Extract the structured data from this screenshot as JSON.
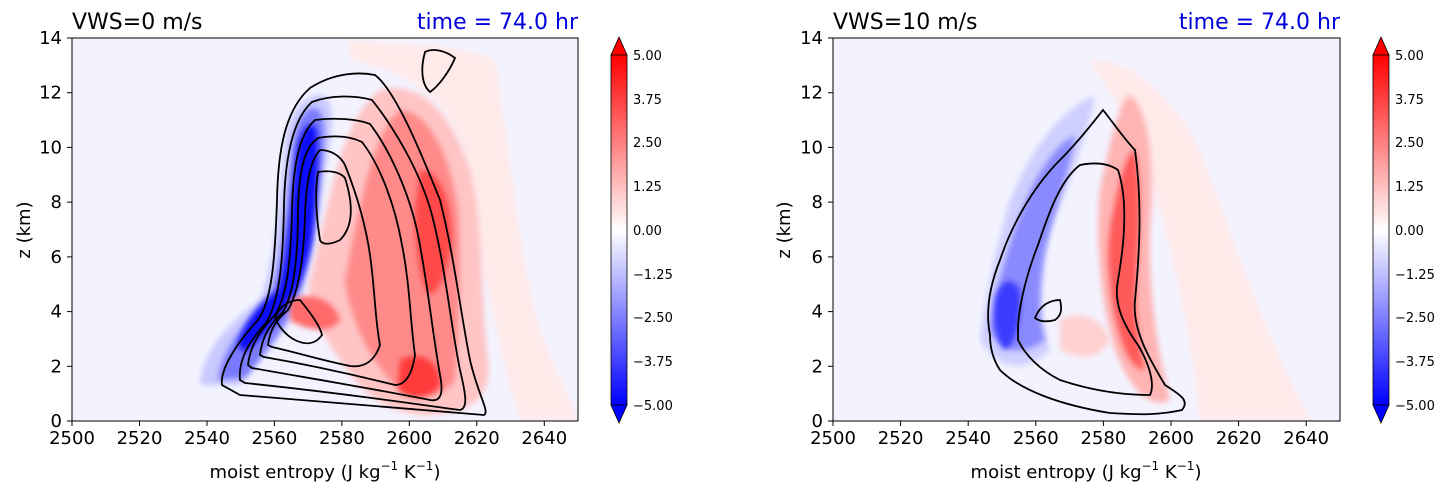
{
  "chart_data": [
    {
      "type": "contour",
      "left_title": "VWS=0 m/s",
      "right_title": "time = 74.0 hr",
      "xlabel_main": "moist entropy (J kg",
      "xlabel_sup1": "−1",
      "xlabel_mid": " K",
      "xlabel_sup2": "−1",
      "xlabel_end": ")",
      "ylabel": "z (km)",
      "xlim": [
        2500,
        2650
      ],
      "ylim": [
        0,
        14
      ],
      "xticks": [
        "2500",
        "2520",
        "2540",
        "2560",
        "2580",
        "2600",
        "2620",
        "2640"
      ],
      "yticks": [
        "0",
        "2",
        "4",
        "6",
        "8",
        "10",
        "12",
        "14"
      ],
      "colorbar": {
        "range": [
          -5,
          5
        ],
        "ticks": [
          "−5.00",
          "−3.75",
          "−2.50",
          "−1.25",
          "0.00",
          "1.25",
          "2.50",
          "3.75",
          "5.00"
        ],
        "extend": "both",
        "colormap": "bwr"
      },
      "neg_center": [
        2565,
        7.0
      ],
      "pos_center": [
        2600,
        7.0
      ]
    },
    {
      "type": "contour",
      "left_title": "VWS=10 m/s",
      "right_title": "time = 74.0 hr",
      "xlabel_main": "moist entropy (J kg",
      "xlabel_sup1": "−1",
      "xlabel_mid": " K",
      "xlabel_sup2": "−1",
      "xlabel_end": ")",
      "ylabel": "z (km)",
      "xlim": [
        2500,
        2650
      ],
      "ylim": [
        0,
        14
      ],
      "xticks": [
        "2500",
        "2520",
        "2540",
        "2560",
        "2580",
        "2600",
        "2620",
        "2640"
      ],
      "yticks": [
        "0",
        "2",
        "4",
        "6",
        "8",
        "10",
        "12",
        "14"
      ],
      "colorbar": {
        "range": [
          -5,
          5
        ],
        "ticks": [
          "−5.00",
          "−3.75",
          "−2.50",
          "−1.25",
          "0.00",
          "1.25",
          "2.50",
          "3.75",
          "5.00"
        ],
        "extend": "both",
        "colormap": "bwr"
      },
      "neg_center": [
        2560,
        5.0
      ],
      "pos_center": [
        2588,
        6.0
      ]
    }
  ],
  "colors": {
    "background": "#f3f3ff",
    "positive": "#ff0000",
    "negative": "#0000ff",
    "title_right": "#0000dd",
    "contour": "#000000"
  }
}
